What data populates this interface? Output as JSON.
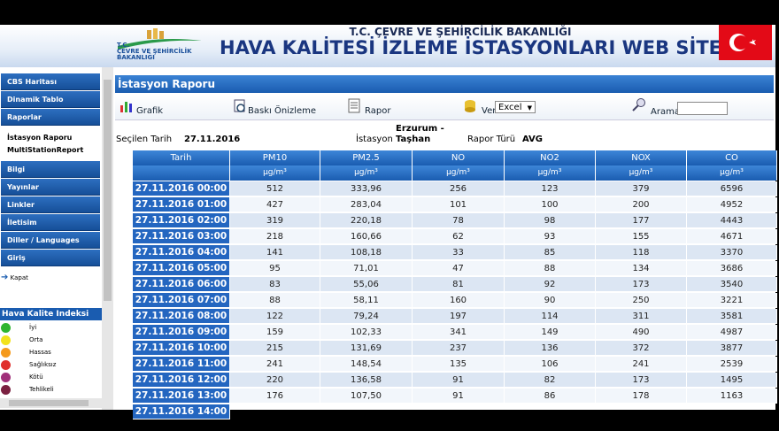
{
  "header": {
    "ministry": "T.C. ÇEVRE VE ŞEHİRCİLİK BAKANLIĞI",
    "title": "HAVA KALİTESİ İZLEME İSTASYONLARI WEB SİTESİ",
    "logo_text": [
      "T.C.",
      "ÇEVRE VE ŞEHİRCİLİK",
      "BAKANLIĞI"
    ]
  },
  "menu": {
    "items": [
      "CBS Haritası",
      "Dinamik Tablo",
      "Raporlar",
      "Bilgi",
      "Yayınlar",
      "Linkler",
      "İletisim",
      "Diller / Languages",
      "Giriş"
    ],
    "submenu": [
      "İstasyon Raporu",
      "MultiStationReport"
    ],
    "close": "Kapat"
  },
  "aqi": {
    "title": "Hava Kalite Indeksi",
    "levels": [
      {
        "label": "İyi",
        "color": "#2fb52f"
      },
      {
        "label": "Orta",
        "color": "#f2e21c"
      },
      {
        "label": "Hassas",
        "color": "#f59a1c"
      },
      {
        "label": "Sağlıksız",
        "color": "#e0302c"
      },
      {
        "label": "Kötü",
        "color": "#a0307a"
      },
      {
        "label": "Tehlikeli",
        "color": "#7a2040"
      }
    ]
  },
  "report": {
    "title": "İstasyon Raporu",
    "toolbar": {
      "chart": "Grafik",
      "print": "Baskı Önizleme",
      "report": "Rapor",
      "export": "Ver",
      "format": "Excel",
      "search": "Arama"
    },
    "date_label": "Seçilen Tarih",
    "date": "27.11.2016",
    "station_label": "İstasyon",
    "station": "Erzurum - Taşhan",
    "type_label": "Rapor Türü",
    "type": "AVG"
  },
  "table": {
    "columns": [
      "Tarih",
      "PM10",
      "PM2.5",
      "NO",
      "NO2",
      "NOX",
      "CO"
    ],
    "units": [
      "µg/m³",
      "µg/m³",
      "µg/m³",
      "µg/m³",
      "µg/m³",
      "µg/m³"
    ],
    "rows": [
      [
        "27.11.2016 00:00",
        "512",
        "333,96",
        "256",
        "123",
        "379",
        "6596"
      ],
      [
        "27.11.2016 01:00",
        "427",
        "283,04",
        "101",
        "100",
        "200",
        "4952"
      ],
      [
        "27.11.2016 02:00",
        "319",
        "220,18",
        "78",
        "98",
        "177",
        "4443"
      ],
      [
        "27.11.2016 03:00",
        "218",
        "160,66",
        "62",
        "93",
        "155",
        "4671"
      ],
      [
        "27.11.2016 04:00",
        "141",
        "108,18",
        "33",
        "85",
        "118",
        "3370"
      ],
      [
        "27.11.2016 05:00",
        "95",
        "71,01",
        "47",
        "88",
        "134",
        "3686"
      ],
      [
        "27.11.2016 06:00",
        "83",
        "55,06",
        "81",
        "92",
        "173",
        "3540"
      ],
      [
        "27.11.2016 07:00",
        "88",
        "58,11",
        "160",
        "90",
        "250",
        "3221"
      ],
      [
        "27.11.2016 08:00",
        "122",
        "79,24",
        "197",
        "114",
        "311",
        "3581"
      ],
      [
        "27.11.2016 09:00",
        "159",
        "102,33",
        "341",
        "149",
        "490",
        "4987"
      ],
      [
        "27.11.2016 10:00",
        "215",
        "131,69",
        "237",
        "136",
        "372",
        "3877"
      ],
      [
        "27.11.2016 11:00",
        "241",
        "148,54",
        "135",
        "106",
        "241",
        "2539"
      ],
      [
        "27.11.2016 12:00",
        "220",
        "136,58",
        "91",
        "82",
        "173",
        "1495"
      ],
      [
        "27.11.2016 13:00",
        "176",
        "107,50",
        "91",
        "86",
        "178",
        "1163"
      ],
      [
        "27.11.2016 14:00"
      ]
    ]
  }
}
